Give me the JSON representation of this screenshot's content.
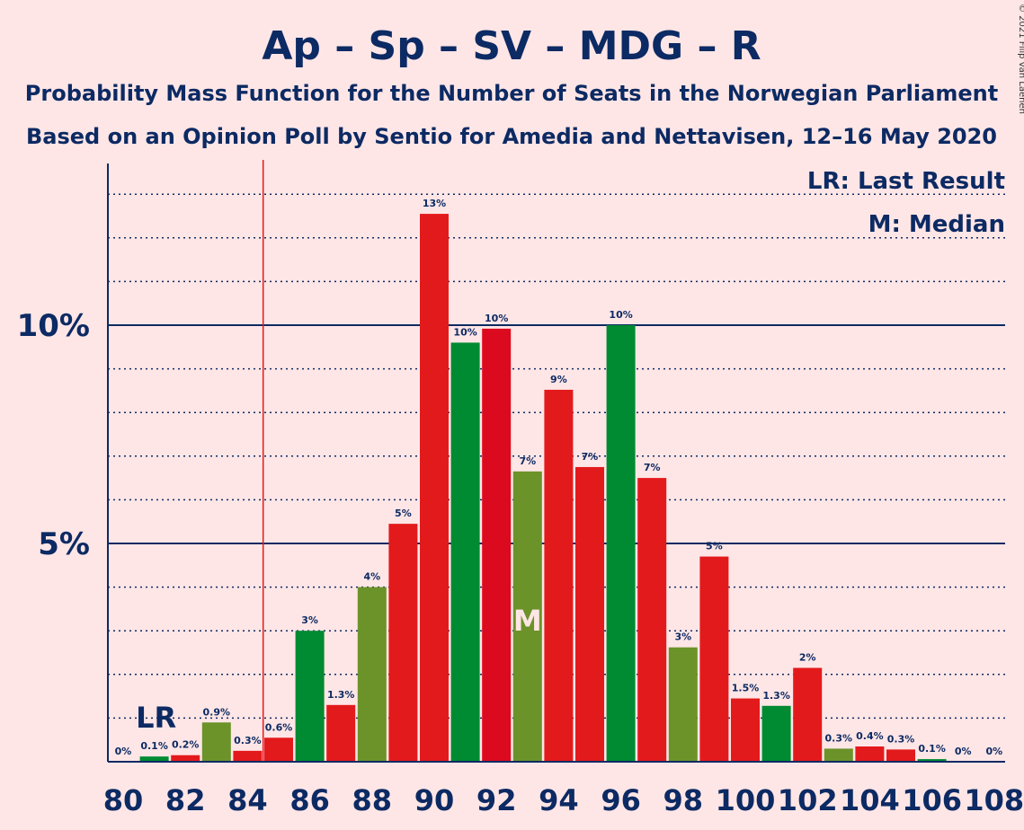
{
  "title": "Ap – Sp – SV – MDG – R",
  "subtitle_line1": "Probability Mass Function for the Number of Seats in the Norwegian Parliament",
  "subtitle_line2": "Based on an Opinion Poll by Sentio for Amedia and Nettavisen, 12–16 May 2020",
  "copyright": "© 2021 Filip van Laenen",
  "legend": {
    "last_result": "LR: Last Result",
    "median": "M: Median"
  },
  "markers": {
    "last_result_label": "LR",
    "median_label": "M"
  },
  "colors": {
    "background": "#ffe6e6",
    "red": "#e31a1c",
    "dark_red": "#dc0a1e",
    "green": "#008a32",
    "olive": "#6b9329",
    "text": "#0c2a63",
    "last_result_line": "#e31a1c"
  },
  "chart_data": {
    "type": "bar",
    "x": [
      80,
      81,
      82,
      83,
      84,
      85,
      86,
      87,
      88,
      89,
      90,
      91,
      92,
      93,
      94,
      95,
      96,
      97,
      98,
      99,
      100,
      101,
      102,
      103,
      104,
      105,
      106,
      107,
      108
    ],
    "values": [
      0.0,
      0.12,
      0.15,
      0.9,
      0.25,
      0.55,
      3.0,
      1.3,
      4.0,
      5.45,
      12.55,
      9.6,
      9.92,
      6.65,
      8.52,
      6.75,
      10.0,
      6.5,
      2.62,
      4.7,
      1.45,
      1.28,
      2.15,
      0.3,
      0.35,
      0.28,
      0.06,
      0.0,
      0.0
    ],
    "labels": [
      "0%",
      "0.1%",
      "0.2%",
      "0.9%",
      "0.3%",
      "0.6%",
      "3%",
      "1.3%",
      "4%",
      "5%",
      "13%",
      "10%",
      "10%",
      "7%",
      "9%",
      "7%",
      "10%",
      "7%",
      "3%",
      "5%",
      "1.5%",
      "1.3%",
      "2%",
      "0.3%",
      "0.4%",
      "0.3%",
      "0.1%",
      "0%",
      "0%"
    ],
    "colors": [
      "red",
      "green",
      "red",
      "olive",
      "red",
      "red",
      "green",
      "red",
      "olive",
      "red",
      "red",
      "green",
      "dark_red",
      "olive",
      "red",
      "red",
      "green",
      "red",
      "olive",
      "red",
      "red",
      "green",
      "red",
      "olive",
      "red",
      "red",
      "green",
      "red",
      "red"
    ],
    "x_ticks": [
      80,
      82,
      84,
      86,
      88,
      90,
      92,
      94,
      96,
      98,
      100,
      102,
      104,
      106,
      108
    ],
    "y_ticks": [
      {
        "value": 5,
        "label": "5%"
      },
      {
        "value": 10,
        "label": "10%"
      }
    ],
    "ylim": [
      0,
      13.5
    ],
    "last_result": 84.5,
    "last_result_label_at": 81,
    "median": 93,
    "grid": "dotted minor every 1%, solid major at 5% and 10%"
  }
}
